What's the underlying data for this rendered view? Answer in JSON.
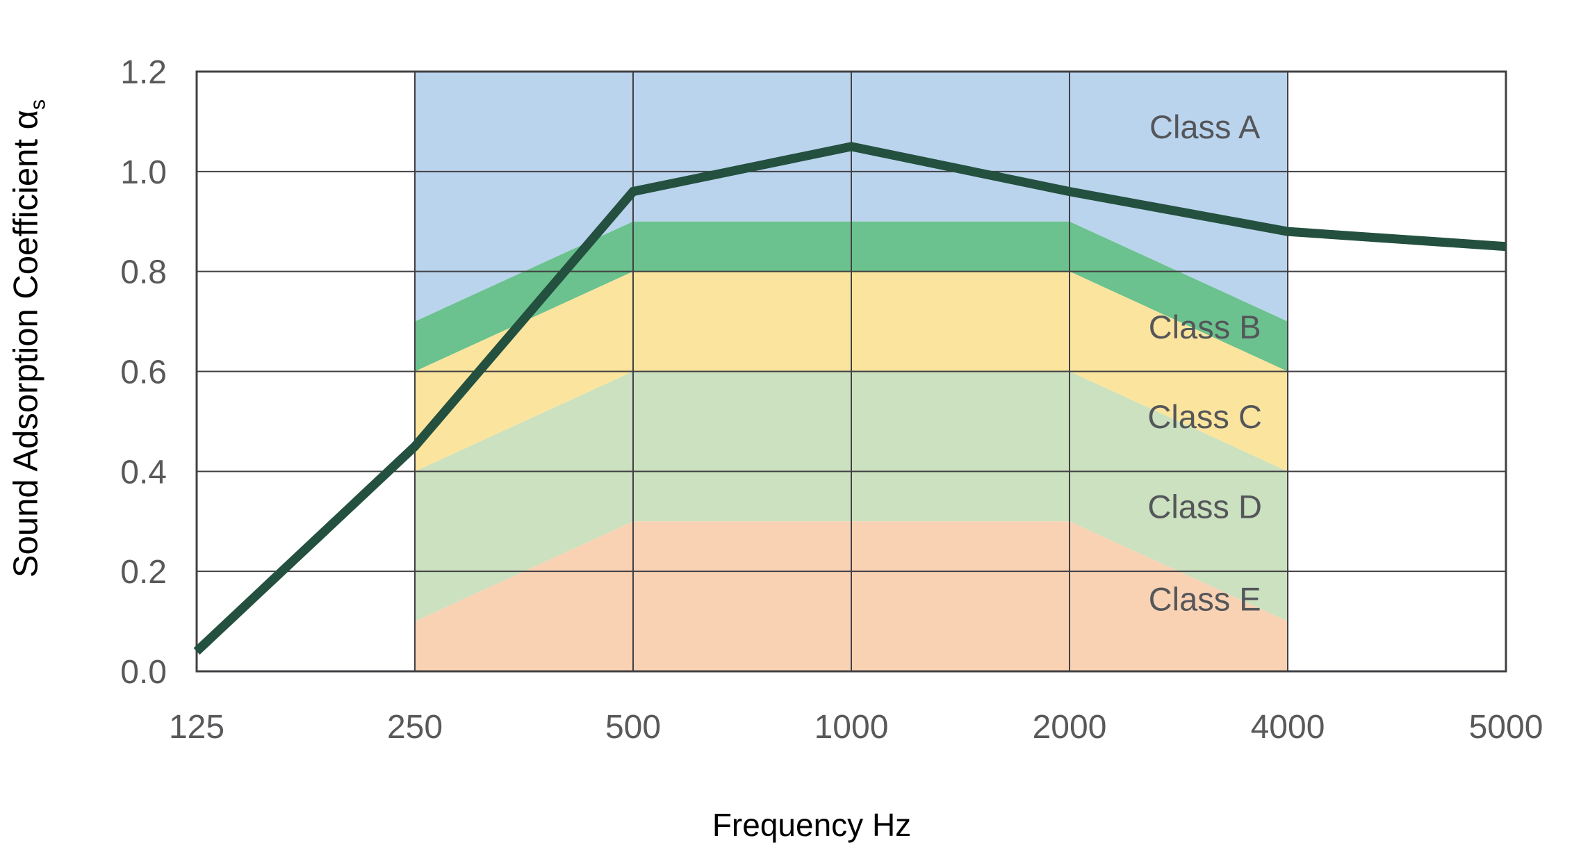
{
  "page": {
    "background": "#FFFFFF"
  },
  "chart_data": {
    "type": "line",
    "title": "",
    "xlabel": "Frequency Hz",
    "ylabel": "Sound Adsorption Coefficient α",
    "ylabel_subscript": "s",
    "x_categories": [
      "125",
      "250",
      "500",
      "1000",
      "2000",
      "4000",
      "5000"
    ],
    "y_tick_labels": [
      "0.0",
      "0.2",
      "0.4",
      "0.6",
      "0.8",
      "1.0",
      "1.2"
    ],
    "y_tick_values": [
      0,
      0.2,
      0.4,
      0.6,
      0.8,
      1.0,
      1.2
    ],
    "ylim": [
      0,
      1.2
    ],
    "grid": true,
    "legend_position": "none",
    "series": [
      {
        "name": "sound-absorption-curve",
        "color": "#24503F",
        "x": [
          "125",
          "250",
          "500",
          "1000",
          "2000",
          "4000",
          "5000"
        ],
        "values": [
          0.04,
          0.45,
          0.96,
          1.05,
          0.96,
          0.88,
          0.85
        ]
      }
    ],
    "class_bands": [
      {
        "label": "Class A",
        "color": "#BAD4ED",
        "freqs": [
          "250",
          "500",
          "1000",
          "2000",
          "4000"
        ],
        "upper": [
          1.2,
          1.2,
          1.2,
          1.2,
          1.2
        ],
        "lower": [
          0.7,
          0.9,
          0.9,
          0.9,
          0.7
        ],
        "label_x_index": 4.62,
        "label_y_value": 1.09
      },
      {
        "label": "Class B",
        "color": "#6BC28E",
        "freqs": [
          "250",
          "500",
          "1000",
          "2000",
          "4000"
        ],
        "upper": [
          0.7,
          0.9,
          0.9,
          0.9,
          0.7
        ],
        "lower": [
          0.6,
          0.8,
          0.8,
          0.8,
          0.6
        ],
        "label_x_index": 4.62,
        "label_y_value": 0.69
      },
      {
        "label": "Class C",
        "color": "#FBE59E",
        "freqs": [
          "250",
          "500",
          "1000",
          "2000",
          "4000"
        ],
        "upper": [
          0.6,
          0.8,
          0.8,
          0.8,
          0.6
        ],
        "lower": [
          0.4,
          0.6,
          0.6,
          0.6,
          0.4
        ],
        "label_x_index": 4.62,
        "label_y_value": 0.51
      },
      {
        "label": "Class D",
        "color": "#CBE1BF",
        "freqs": [
          "250",
          "500",
          "1000",
          "2000",
          "4000"
        ],
        "upper": [
          0.4,
          0.6,
          0.6,
          0.6,
          0.4
        ],
        "lower": [
          0.1,
          0.3,
          0.3,
          0.3,
          0.1
        ],
        "label_x_index": 4.62,
        "label_y_value": 0.33
      },
      {
        "label": "Class E",
        "color": "#F9D2B4",
        "freqs": [
          "250",
          "500",
          "1000",
          "2000",
          "4000"
        ],
        "upper": [
          0.1,
          0.3,
          0.3,
          0.3,
          0.1
        ],
        "lower": [
          0,
          0,
          0,
          0,
          0
        ],
        "label_x_index": 4.62,
        "label_y_value": 0.145
      }
    ],
    "style": {
      "grid_color": "#414144",
      "tick_label_color": "#58595B",
      "class_label_color": "#54565A",
      "axis_title_color": "#000000",
      "plot_background": "#FFFFFF"
    }
  }
}
